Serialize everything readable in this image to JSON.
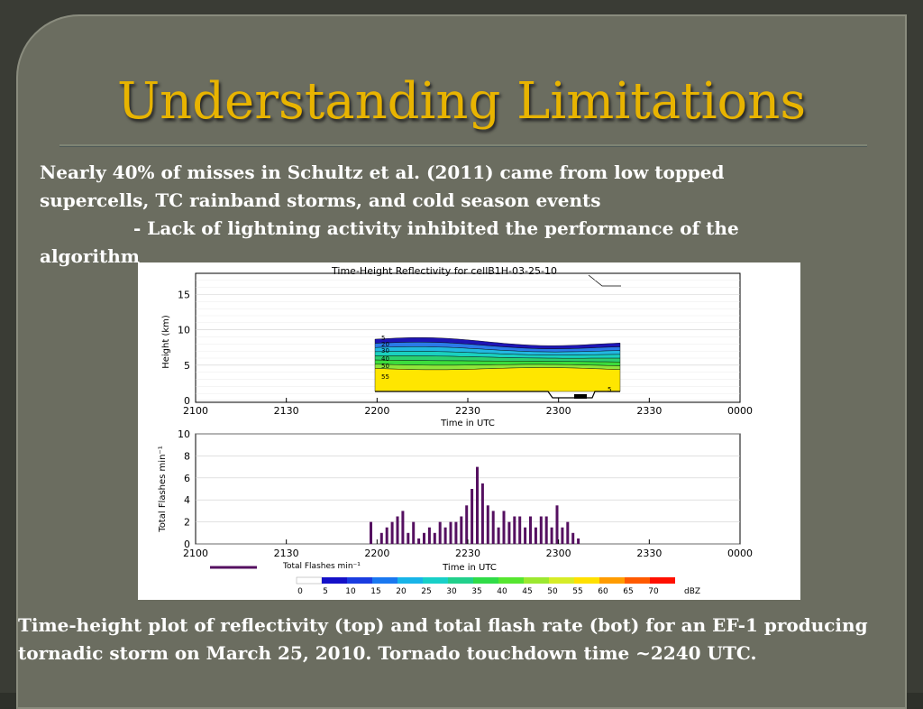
{
  "slide": {
    "title": "Understanding Limitations",
    "paragraph_line1": "Nearly 40% of misses in Schultz et al. (2011) came from low topped supercells, TC rainband storms, and cold season events",
    "paragraph_line2": "- Lack of lightning activity inhibited the performance of the algorithm",
    "caption": "Time-height plot of reflectivity (top) and total flash rate (bot) for an EF-1 producing tornadic storm on March 25, 2010.  Tornado touchdown time ~2240 UTC."
  },
  "chart_data": [
    {
      "type": "heatmap",
      "title": "Time-Height Reflectivity for cellB1H-03-25-10",
      "xlabel": "Time in UTC",
      "ylabel": "Height (km)",
      "x_tick_labels": [
        "2100",
        "2130",
        "2200",
        "2230",
        "2300",
        "2330",
        "0000"
      ],
      "y_ticks": [
        0,
        5,
        10,
        15
      ],
      "ylim": [
        0,
        18
      ],
      "contour_labels": [
        "5",
        "20",
        "30",
        "40",
        "50",
        "55"
      ],
      "bottom_contour_label": "5",
      "colors": [
        "#1e14b4",
        "#2b7ae8",
        "#22b8e0",
        "#1ad0c0",
        "#2cd070",
        "#3cdc3c",
        "#8ee63a",
        "#ffe600"
      ]
    },
    {
      "type": "bar",
      "xlabel": "Time in UTC",
      "ylabel": "Total Flashes min⁻¹",
      "x_tick_labels": [
        "2100",
        "2130",
        "2200",
        "2230",
        "2300",
        "2330",
        "0000"
      ],
      "y_ticks": [
        0,
        2,
        4,
        6,
        8,
        10
      ],
      "ylim": [
        0,
        10
      ],
      "legend": "Total Flashes min⁻¹",
      "color": "#551060",
      "values": [
        2.0,
        0.0,
        1.0,
        1.5,
        2.0,
        2.5,
        3.0,
        1.0,
        2.0,
        0.5,
        1.0,
        1.5,
        1.0,
        2.0,
        1.5,
        2.0,
        2.0,
        2.5,
        3.5,
        5.0,
        7.0,
        5.5,
        3.5,
        3.0,
        1.5,
        3.0,
        2.0,
        2.5,
        2.5,
        1.5,
        2.5,
        1.5,
        2.5,
        2.5,
        1.5,
        3.5,
        1.5,
        2.0,
        1.0,
        0.5
      ]
    },
    {
      "type": "colorbar",
      "unit": "dBZ",
      "labels": [
        "0",
        "5",
        "10",
        "15",
        "20",
        "25",
        "30",
        "35",
        "40",
        "45",
        "50",
        "55",
        "60",
        "65",
        "70"
      ],
      "colors": [
        "#ffffff",
        "#1410c8",
        "#1a3ce0",
        "#1a78f0",
        "#18b4e8",
        "#18d0c8",
        "#22d08c",
        "#30dc48",
        "#56e630",
        "#9ce830",
        "#d6ec28",
        "#ffe000",
        "#ff9c00",
        "#ff5a00",
        "#ff1000"
      ]
    }
  ]
}
